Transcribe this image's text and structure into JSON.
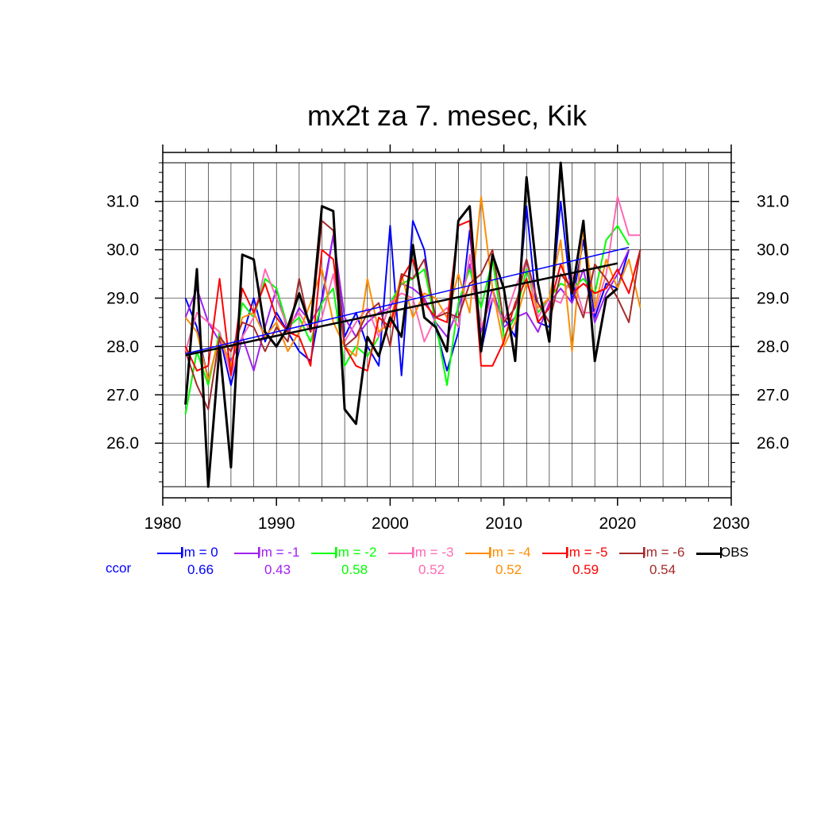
{
  "chart_data": {
    "type": "line",
    "title": "mx2t za 7. mesec, Kik",
    "xlim": [
      1980,
      2030
    ],
    "ylim": [
      25.1,
      31.8
    ],
    "x_ticks": [
      "1980",
      "1990",
      "2000",
      "2010",
      "2020",
      "2030"
    ],
    "y_ticks": [
      "26.0",
      "27.0",
      "28.0",
      "29.0",
      "30.0",
      "31.0"
    ],
    "grid": true,
    "legend_placement": "bottom",
    "ccor_label": "ccor",
    "series": [
      {
        "name": "lm = 0",
        "color": "#0000ff",
        "ccor": "0.66",
        "x": [
          1982,
          1983,
          1984,
          1985,
          1986,
          1987,
          1988,
          1989,
          1990,
          1991,
          1992,
          1993,
          1994,
          1995,
          1996,
          1997,
          1998,
          1999,
          2000,
          2001,
          2002,
          2003,
          2004,
          2005,
          2006,
          2007,
          2008,
          2009,
          2010,
          2011,
          2012,
          2013,
          2014,
          2015,
          2016,
          2017,
          2018,
          2019,
          2020,
          2021
        ],
        "y": [
          29.0,
          28.4,
          27.3,
          28.2,
          27.2,
          28.2,
          29.0,
          28.1,
          28.7,
          28.3,
          27.9,
          27.7,
          29.0,
          30.3,
          28.2,
          28.7,
          28.0,
          27.6,
          30.5,
          27.4,
          30.6,
          30.0,
          28.4,
          27.5,
          28.3,
          30.4,
          27.9,
          29.0,
          28.6,
          28.2,
          30.9,
          28.5,
          28.4,
          31.0,
          28.9,
          30.2,
          28.6,
          29.3,
          29.2,
          30.0
        ],
        "trend": [
          [
            1982,
            27.85
          ],
          [
            2021,
            30.05
          ]
        ]
      },
      {
        "name": "lm = -1",
        "color": "#a020f0",
        "ccor": "0.43",
        "x": [
          1982,
          1983,
          1984,
          1985,
          1986,
          1987,
          1988,
          1989,
          1990,
          1991,
          1992,
          1993,
          1994,
          1995,
          1996,
          1997,
          1998,
          1999,
          2000,
          2001,
          2002,
          2003,
          2004,
          2005,
          2006,
          2007,
          2008,
          2009,
          2010,
          2011,
          2012,
          2013,
          2014,
          2015,
          2016,
          2017,
          2018,
          2019,
          2020,
          2021
        ],
        "y": [
          28.6,
          29.2,
          28.5,
          28.1,
          27.7,
          28.2,
          27.5,
          28.4,
          29.2,
          28.3,
          28.8,
          28.5,
          28.9,
          30.3,
          28.6,
          28.2,
          28.5,
          28.7,
          28.8,
          29.3,
          29.2,
          29.0,
          28.5,
          28.2,
          28.8,
          29.7,
          28.3,
          29.2,
          28.4,
          28.6,
          28.7,
          28.3,
          28.9,
          29.2,
          28.9,
          29.6,
          28.5,
          29.1,
          29.5,
          30.0
        ]
      },
      {
        "name": "lm = -2",
        "color": "#00ff00",
        "ccor": "0.58",
        "x": [
          1982,
          1983,
          1984,
          1985,
          1986,
          1987,
          1988,
          1989,
          1990,
          1991,
          1992,
          1993,
          1994,
          1995,
          1996,
          1997,
          1998,
          1999,
          2000,
          2001,
          2002,
          2003,
          2004,
          2005,
          2006,
          2007,
          2008,
          2009,
          2010,
          2011,
          2012,
          2013,
          2014,
          2015,
          2016,
          2017,
          2018,
          2019,
          2020,
          2021
        ],
        "y": [
          26.6,
          27.9,
          27.2,
          28.3,
          27.5,
          28.9,
          28.6,
          29.4,
          29.2,
          28.4,
          28.6,
          28.1,
          28.9,
          29.2,
          27.6,
          28.0,
          27.8,
          28.2,
          28.9,
          29.3,
          29.4,
          29.6,
          28.5,
          27.2,
          28.9,
          29.6,
          28.8,
          29.8,
          28.2,
          28.6,
          29.6,
          28.7,
          29.0,
          29.3,
          29.2,
          29.4,
          29.1,
          30.2,
          30.5,
          30.1
        ]
      },
      {
        "name": "lm = -3",
        "color": "#ff69b4",
        "ccor": "0.52",
        "x": [
          1982,
          1983,
          1984,
          1985,
          1986,
          1987,
          1988,
          1989,
          1990,
          1991,
          1992,
          1993,
          1994,
          1995,
          1996,
          1997,
          1998,
          1999,
          2000,
          2001,
          2002,
          2003,
          2004,
          2005,
          2006,
          2007,
          2008,
          2009,
          2010,
          2011,
          2012,
          2013,
          2014,
          2015,
          2016,
          2017,
          2018,
          2019,
          2020,
          2021,
          2022
        ],
        "y": [
          27.9,
          28.7,
          28.5,
          28.3,
          27.4,
          28.2,
          28.6,
          29.6,
          29.0,
          28.4,
          28.7,
          28.3,
          28.6,
          29.5,
          28.1,
          28.5,
          28.8,
          28.2,
          28.9,
          29.1,
          29.0,
          28.1,
          28.6,
          28.8,
          28.4,
          29.9,
          28.4,
          29.0,
          28.5,
          29.2,
          29.8,
          28.6,
          29.0,
          28.9,
          29.5,
          28.7,
          28.7,
          29.5,
          31.1,
          30.3,
          30.3
        ]
      },
      {
        "name": "lm = -4",
        "color": "#ff8c00",
        "ccor": "0.52",
        "x": [
          1982,
          1983,
          1984,
          1985,
          1986,
          1987,
          1988,
          1989,
          1990,
          1991,
          1992,
          1993,
          1994,
          1995,
          1996,
          1997,
          1998,
          1999,
          2000,
          2001,
          2002,
          2003,
          2004,
          2005,
          2006,
          2007,
          2008,
          2009,
          2010,
          2011,
          2012,
          2013,
          2014,
          2015,
          2016,
          2017,
          2018,
          2019,
          2020,
          2021,
          2022
        ],
        "y": [
          28.6,
          28.3,
          27.3,
          28.2,
          27.6,
          28.6,
          28.7,
          28.2,
          28.5,
          27.9,
          28.3,
          28.9,
          29.6,
          28.5,
          28.0,
          27.8,
          29.4,
          28.3,
          28.5,
          29.5,
          28.6,
          29.1,
          29.0,
          28.6,
          29.5,
          28.7,
          31.1,
          29.2,
          28.0,
          28.5,
          29.3,
          28.8,
          29.0,
          30.2,
          27.9,
          30.5,
          28.8,
          29.8,
          29.2,
          29.8,
          28.8
        ]
      },
      {
        "name": "lm = -5",
        "color": "#ff0000",
        "ccor": "0.59",
        "x": [
          1982,
          1983,
          1984,
          1985,
          1986,
          1987,
          1988,
          1989,
          1990,
          1991,
          1992,
          1993,
          1994,
          1995,
          1996,
          1997,
          1998,
          1999,
          2000,
          2001,
          2002,
          2003,
          2004,
          2005,
          2006,
          2007,
          2008,
          2009,
          2010,
          2011,
          2012,
          2013,
          2014,
          2015,
          2016,
          2017,
          2018,
          2019,
          2020,
          2021,
          2022
        ],
        "y": [
          28.0,
          27.5,
          27.6,
          29.4,
          27.4,
          29.2,
          28.7,
          29.3,
          28.6,
          28.3,
          28.2,
          27.6,
          30.0,
          29.8,
          28.0,
          27.6,
          27.5,
          28.6,
          28.4,
          29.4,
          29.8,
          28.9,
          28.6,
          28.5,
          30.5,
          30.6,
          27.6,
          27.6,
          28.1,
          28.9,
          29.4,
          28.5,
          28.8,
          29.7,
          29.1,
          29.3,
          29.1,
          29.2,
          29.6,
          29.1,
          30.0
        ]
      },
      {
        "name": "lm = -6",
        "color": "#a52a2a",
        "ccor": "0.54",
        "x": [
          1982,
          1983,
          1984,
          1985,
          1986,
          1987,
          1988,
          1989,
          1990,
          1991,
          1992,
          1993,
          1994,
          1995,
          1996,
          1997,
          1998,
          1999,
          2000,
          2001,
          2002,
          2003,
          2004,
          2005,
          2006,
          2007,
          2008,
          2009,
          2010,
          2011,
          2012,
          2013,
          2014,
          2015,
          2016,
          2017,
          2018,
          2019,
          2020,
          2021,
          2022
        ],
        "y": [
          27.9,
          27.2,
          26.7,
          28.2,
          27.9,
          28.5,
          28.4,
          27.9,
          28.4,
          28.1,
          29.4,
          28.3,
          30.6,
          30.4,
          28.0,
          28.2,
          28.7,
          28.9,
          28.0,
          29.5,
          29.4,
          29.8,
          28.6,
          28.7,
          28.6,
          29.3,
          29.5,
          30.0,
          28.5,
          28.8,
          29.8,
          28.9,
          28.5,
          29.5,
          29.2,
          28.6,
          29.7,
          29.4,
          29.0,
          28.5,
          30.0
        ]
      },
      {
        "name": "OBS",
        "color": "#000000",
        "ccor": "",
        "x": [
          1982,
          1983,
          1984,
          1985,
          1986,
          1987,
          1988,
          1989,
          1990,
          1991,
          1992,
          1993,
          1994,
          1995,
          1996,
          1997,
          1998,
          1999,
          2000,
          2001,
          2002,
          2003,
          2004,
          2005,
          2006,
          2007,
          2008,
          2009,
          2010,
          2011,
          2012,
          2013,
          2014,
          2015,
          2016,
          2017,
          2018,
          2019,
          2020
        ],
        "y": [
          26.8,
          29.6,
          25.1,
          28.0,
          25.5,
          29.9,
          29.8,
          28.3,
          28.0,
          28.4,
          29.1,
          28.4,
          30.9,
          30.8,
          26.7,
          26.4,
          28.2,
          27.8,
          28.6,
          28.2,
          30.1,
          28.6,
          28.4,
          27.9,
          30.6,
          30.9,
          27.9,
          29.9,
          29.2,
          27.7,
          31.5,
          29.3,
          28.1,
          31.8,
          29.1,
          30.6,
          27.7,
          29.0,
          29.2
        ],
        "trend": [
          [
            1982,
            27.82
          ],
          [
            2020,
            29.72
          ]
        ]
      }
    ]
  }
}
